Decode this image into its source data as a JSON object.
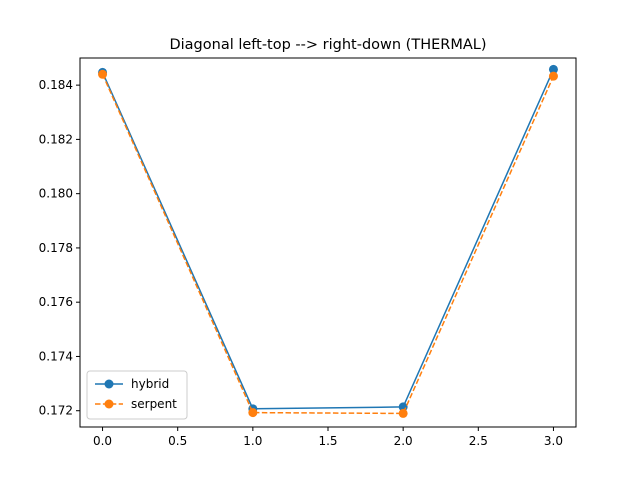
{
  "chart_data": {
    "type": "line",
    "title": "Diagonal left-top --> right-down (THERMAL)",
    "xlabel": "",
    "ylabel": "",
    "x": [
      0,
      1,
      2,
      3
    ],
    "xlim": [
      -0.15,
      3.15
    ],
    "ylim": [
      0.1714,
      0.185
    ],
    "xticks": [
      0.0,
      0.5,
      1.0,
      1.5,
      2.0,
      2.5,
      3.0
    ],
    "xtick_labels": [
      "0.0",
      "0.5",
      "1.0",
      "1.5",
      "2.0",
      "2.5",
      "3.0"
    ],
    "yticks": [
      0.172,
      0.174,
      0.176,
      0.178,
      0.18,
      0.182,
      0.184
    ],
    "ytick_labels": [
      "0.172",
      "0.174",
      "0.176",
      "0.178",
      "0.180",
      "0.182",
      "0.184"
    ],
    "grid": false,
    "legend_position": "lower-left",
    "series": [
      {
        "name": "hybrid",
        "values": [
          0.18447,
          0.17207,
          0.17214,
          0.18458
        ],
        "color": "#1f77b4",
        "line_style": "solid",
        "marker": "circle"
      },
      {
        "name": "serpent",
        "values": [
          0.1844,
          0.17193,
          0.1719,
          0.18433
        ],
        "color": "#ff7f0e",
        "line_style": "dashed",
        "marker": "circle"
      }
    ]
  }
}
